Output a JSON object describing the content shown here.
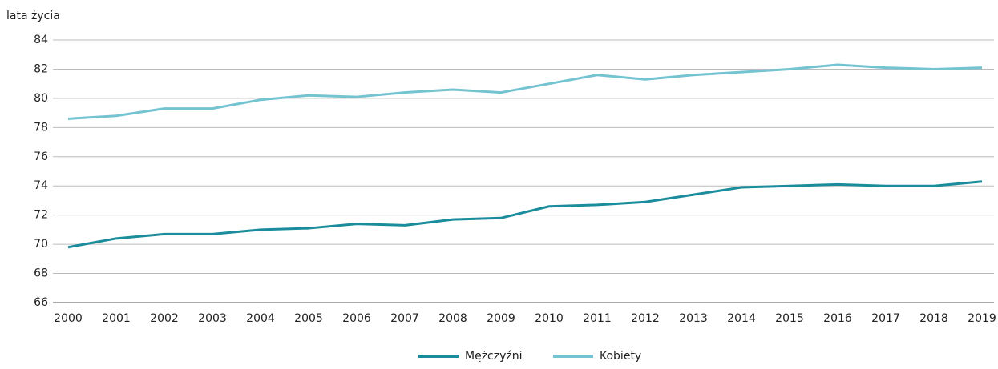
{
  "chart_data": {
    "type": "line",
    "y_label": "lata życia",
    "categories": [
      "2000",
      "2001",
      "2002",
      "2003",
      "2004",
      "2005",
      "2006",
      "2007",
      "2008",
      "2009",
      "2010",
      "2011",
      "2012",
      "2013",
      "2014",
      "2015",
      "2016",
      "2017",
      "2018",
      "2019"
    ],
    "series": [
      {
        "name": "Mężczyźni",
        "color": "#1a8c9c",
        "values": [
          69.8,
          70.4,
          70.7,
          70.7,
          71.0,
          71.1,
          71.4,
          71.3,
          71.7,
          71.8,
          72.6,
          72.7,
          72.9,
          73.4,
          73.9,
          74.0,
          74.1,
          74.0,
          74.0,
          74.3
        ]
      },
      {
        "name": "Kobiety",
        "color": "#74c3d1",
        "values": [
          78.6,
          78.8,
          79.3,
          79.3,
          79.9,
          80.2,
          80.1,
          80.4,
          80.6,
          80.4,
          81.0,
          81.6,
          81.3,
          81.6,
          81.8,
          82.0,
          82.3,
          82.1,
          82.0,
          82.1
        ]
      }
    ],
    "ylim": [
      66,
      84
    ],
    "yticks": [
      66,
      68,
      70,
      72,
      74,
      76,
      78,
      80,
      82,
      84
    ],
    "grid": true,
    "legend": "bottom"
  }
}
